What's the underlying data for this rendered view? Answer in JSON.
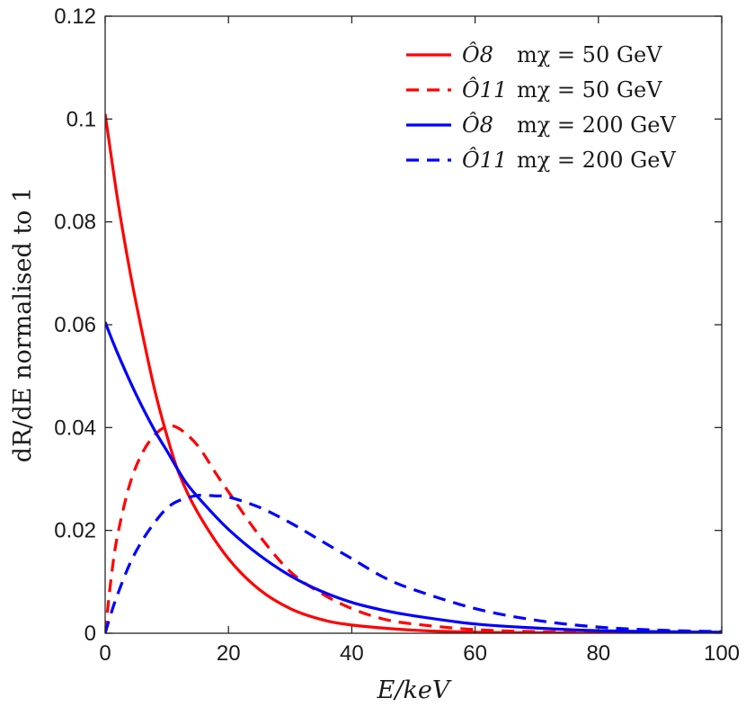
{
  "chart_data": {
    "type": "line",
    "title": "",
    "xlabel": "E/keV",
    "ylabel": "dR/dE  normalised to 1",
    "xlim": [
      0,
      100
    ],
    "ylim": [
      0,
      0.12
    ],
    "xticks": [
      0,
      20,
      40,
      60,
      80,
      100
    ],
    "xtick_labels": [
      "0",
      "20",
      "40",
      "60",
      "80",
      "100"
    ],
    "yticks": [
      0,
      0.02,
      0.04,
      0.06,
      0.08,
      0.1,
      0.12
    ],
    "ytick_labels": [
      "0",
      "0.02",
      "0.04",
      "0.06",
      "0.08",
      "0.1",
      "0.12"
    ],
    "grid": false,
    "legend_position": "top-right",
    "series": [
      {
        "name": "Ô8  mχ = 50 GeV",
        "operator_label": "Ô8",
        "mass_label": "mχ = 50 GeV",
        "color": "#ff0000",
        "dash": "solid",
        "x": [
          0,
          2,
          4,
          6,
          8,
          10,
          12,
          15,
          20,
          25,
          30,
          35,
          40,
          50,
          60,
          70,
          80,
          100
        ],
        "y": [
          0.101,
          0.0845,
          0.0705,
          0.0585,
          0.0475,
          0.0385,
          0.031,
          0.0235,
          0.0145,
          0.0085,
          0.0048,
          0.0027,
          0.0016,
          0.0006,
          0.0002,
          0.0001,
          0.0,
          0.0
        ]
      },
      {
        "name": "Ô11  mχ = 50 GeV",
        "operator_label": "Ô11",
        "mass_label": "mχ = 50 GeV",
        "color": "#ff0000",
        "dash": "dashed",
        "x": [
          0,
          1,
          2,
          4,
          6,
          8,
          10,
          12,
          15,
          18,
          20,
          25,
          30,
          35,
          40,
          45,
          50,
          60,
          70,
          80,
          100
        ],
        "y": [
          0.0,
          0.011,
          0.019,
          0.029,
          0.035,
          0.0385,
          0.0402,
          0.0398,
          0.0365,
          0.031,
          0.0275,
          0.019,
          0.012,
          0.0078,
          0.0048,
          0.0028,
          0.0018,
          0.0007,
          0.0003,
          0.0001,
          0.0
        ]
      },
      {
        "name": "Ô8  mχ = 200 GeV",
        "operator_label": "Ô8",
        "mass_label": "mχ = 200 GeV",
        "color": "#0000ff",
        "dash": "solid",
        "x": [
          0,
          2,
          5,
          8,
          10,
          13,
          16,
          20,
          25,
          30,
          35,
          40,
          45,
          50,
          60,
          70,
          80,
          90,
          100
        ],
        "y": [
          0.0605,
          0.0545,
          0.0465,
          0.0395,
          0.0355,
          0.0295,
          0.0252,
          0.0202,
          0.0152,
          0.0112,
          0.0082,
          0.006,
          0.0045,
          0.0034,
          0.0018,
          0.001,
          0.0005,
          0.0003,
          0.0002
        ]
      },
      {
        "name": "Ô11  mχ = 200 GeV",
        "operator_label": "Ô11",
        "mass_label": "mχ = 200 GeV",
        "color": "#0000ff",
        "dash": "dashed",
        "x": [
          0,
          1,
          2,
          4,
          6,
          8,
          10,
          12,
          15,
          18,
          20,
          25,
          30,
          35,
          40,
          45,
          50,
          60,
          70,
          80,
          90,
          100
        ],
        "y": [
          0.0,
          0.004,
          0.0075,
          0.0135,
          0.018,
          0.0215,
          0.0243,
          0.0258,
          0.0268,
          0.0267,
          0.0265,
          0.0245,
          0.0215,
          0.018,
          0.0145,
          0.011,
          0.0085,
          0.0048,
          0.0025,
          0.0012,
          0.0006,
          0.0003
        ]
      }
    ]
  }
}
